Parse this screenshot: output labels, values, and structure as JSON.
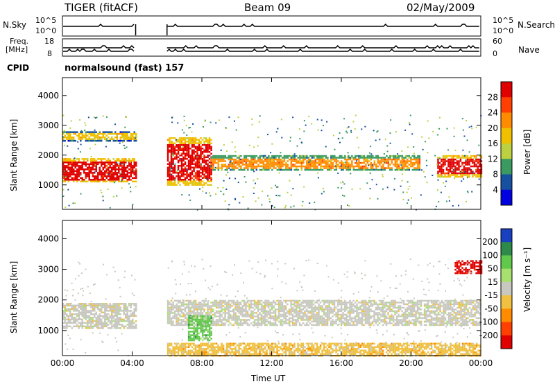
{
  "header": {
    "radar": "TIGER (fitACF)",
    "beam": "Beam 09",
    "date": "02/May/2009"
  },
  "strip_panels": {
    "nsky": {
      "label": "N.Sky",
      "ticks_left": [
        "10^5",
        "10^0"
      ]
    },
    "nsearch": {
      "label": "N.Search",
      "ticks_right": [
        "10^5",
        "10^0"
      ]
    },
    "freq": {
      "label_line1": "Freq.",
      "label_line2": "[MHz]",
      "ticks_left": [
        "18",
        "8"
      ]
    },
    "nave": {
      "label": "Nave",
      "ticks_right": [
        "60",
        "0"
      ]
    },
    "cpid": {
      "label": "CPID",
      "value": "normalsound (fast) 157"
    }
  },
  "chart_data": [
    {
      "type": "heatmap",
      "title": "Power",
      "xlabel": "Time UT",
      "ylabel": "Slant Range [km]",
      "x_ticks": [
        "00:00",
        "04:00",
        "08:00",
        "12:00",
        "16:00",
        "20:00",
        "00:00"
      ],
      "y_ticks": [
        1000,
        2000,
        3000,
        4000
      ],
      "ylim": [
        180,
        4600
      ],
      "data_gap_hours": [
        4.2,
        6.0
      ],
      "colorbar": {
        "label": "Power [dB]",
        "ticks": [
          "28",
          "24",
          "20",
          "16",
          "12",
          "8",
          "4"
        ],
        "colors": [
          "#e00000",
          "#ff4000",
          "#ff8c00",
          "#f0c000",
          "#bcd040",
          "#3a9a60",
          "#1850a0",
          "#0000e0"
        ]
      },
      "bands": [
        {
          "from_h": 0.0,
          "to_h": 4.2,
          "range_km": [
            1100,
            1900
          ],
          "power_db": 26
        },
        {
          "from_h": 0.0,
          "to_h": 4.2,
          "range_km": [
            2500,
            2800
          ],
          "power_db": 14
        },
        {
          "from_h": 6.0,
          "to_h": 8.5,
          "range_km": [
            1000,
            2600
          ],
          "power_db": 26
        },
        {
          "from_h": 8.5,
          "to_h": 20.5,
          "range_km": [
            1500,
            2000
          ],
          "power_db": 18
        },
        {
          "from_h": 21.5,
          "to_h": 24.0,
          "range_km": [
            1300,
            2000
          ],
          "power_db": 26
        }
      ]
    },
    {
      "type": "heatmap",
      "title": "Velocity",
      "xlabel": "Time UT",
      "ylabel": "Slant Range [km]",
      "x_ticks": [
        "00:00",
        "04:00",
        "08:00",
        "12:00",
        "16:00",
        "20:00",
        "00:00"
      ],
      "y_ticks": [
        1000,
        2000,
        3000,
        4000
      ],
      "ylim": [
        180,
        4600
      ],
      "data_gap_hours": [
        4.2,
        6.0
      ],
      "colorbar": {
        "label": "Velocity [m s⁻¹]",
        "ticks": [
          "200",
          "100",
          "50",
          "15",
          "-15",
          "-50",
          "-100",
          "-200"
        ],
        "colors": [
          "#1840c0",
          "#2e8a4a",
          "#60c84a",
          "#a8e070",
          "#c8c8c0",
          "#f0c040",
          "#ff8c00",
          "#ff4000",
          "#e00000"
        ]
      },
      "bands": [
        {
          "from_h": 0.0,
          "to_h": 4.2,
          "range_km": [
            1100,
            1900
          ],
          "velocity": 0
        },
        {
          "from_h": 6.0,
          "to_h": 24.0,
          "range_km": [
            1200,
            2000
          ],
          "velocity": 0
        },
        {
          "from_h": 7.2,
          "to_h": 8.5,
          "range_km": [
            700,
            1500
          ],
          "velocity": 60
        },
        {
          "from_h": 6.0,
          "to_h": 24.0,
          "range_km": [
            200,
            600
          ],
          "velocity": -60
        },
        {
          "from_h": 22.5,
          "to_h": 24.0,
          "range_km": [
            2900,
            3300
          ],
          "velocity": -150
        }
      ]
    }
  ]
}
